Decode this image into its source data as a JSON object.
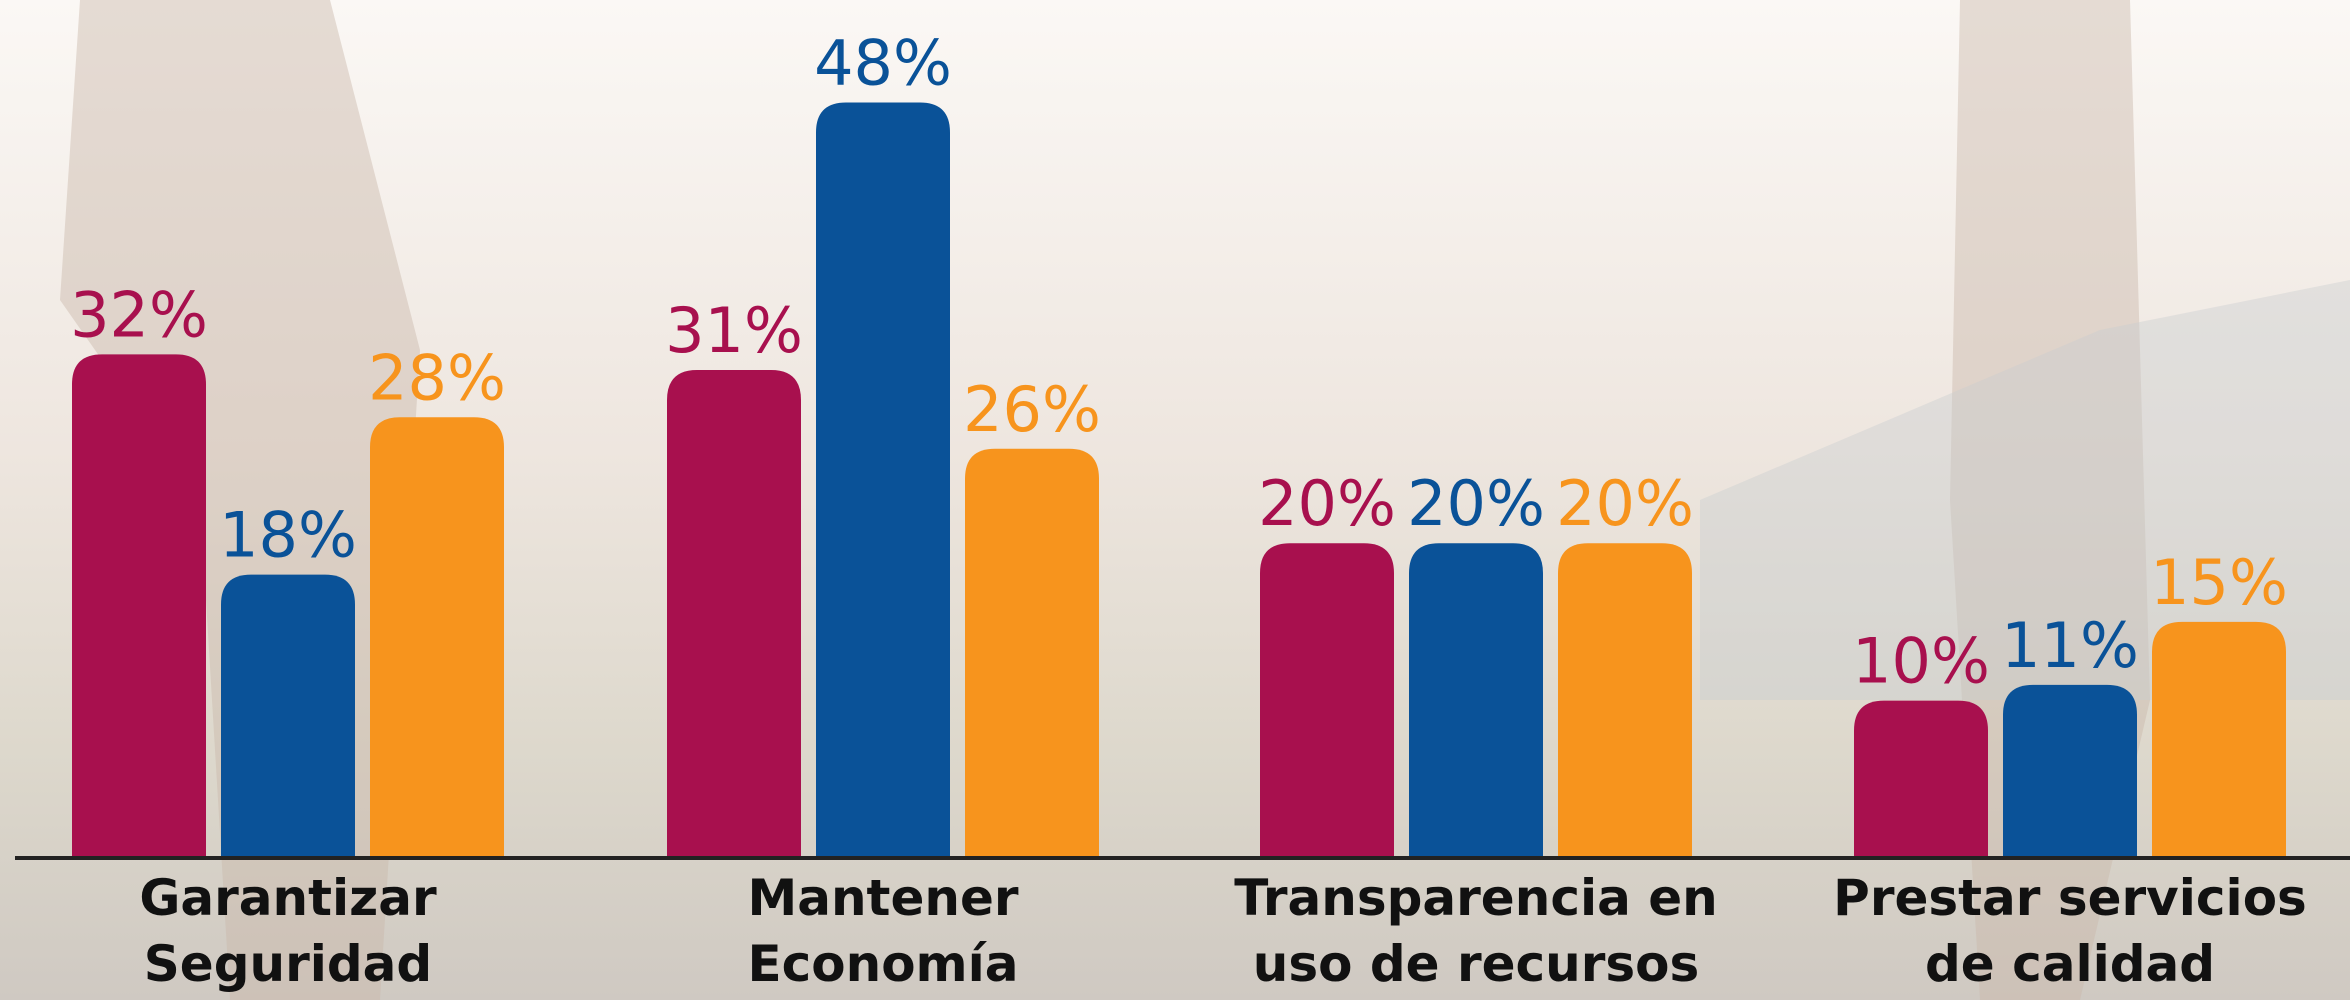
{
  "chart_data": {
    "type": "bar",
    "categories": [
      [
        "Garantizar",
        "Seguridad"
      ],
      [
        "Mantener",
        "Economía"
      ],
      [
        "Transparencia en",
        "uso de recursos"
      ],
      [
        "Prestar servicios",
        "de calidad"
      ]
    ],
    "series": [
      {
        "color": "#a8104e",
        "values": [
          32,
          31,
          20,
          10
        ],
        "value_labels": [
          "32%",
          "31%",
          "20%",
          "10%"
        ]
      },
      {
        "color": "#0a5298",
        "values": [
          18,
          48,
          20,
          11
        ],
        "value_labels": [
          "18%",
          "48%",
          "20%",
          "11%"
        ]
      },
      {
        "color": "#f7941d",
        "values": [
          28,
          26,
          20,
          15
        ],
        "value_labels": [
          "28%",
          "26%",
          "20%",
          "15%"
        ]
      }
    ],
    "ylim": [
      0,
      50
    ]
  }
}
